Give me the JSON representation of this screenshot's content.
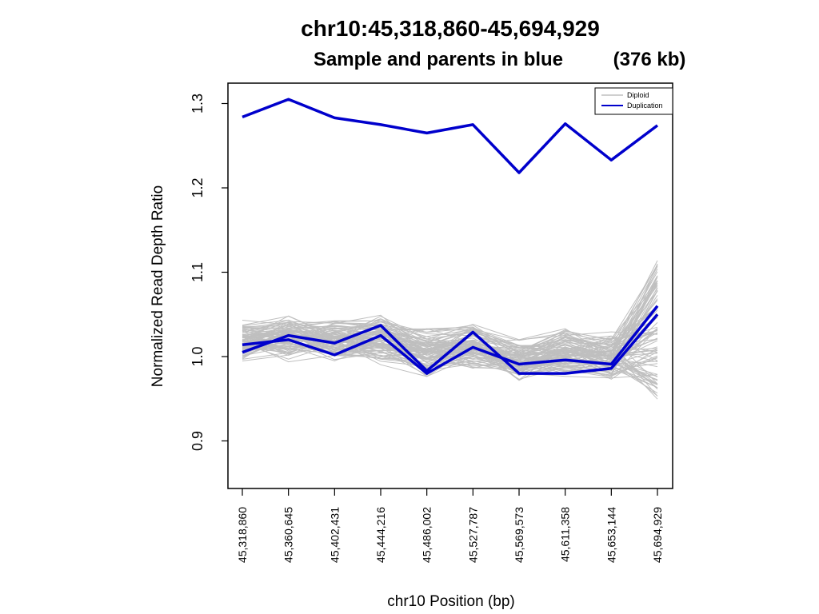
{
  "chart_data": {
    "type": "line",
    "title": "chr10:45,318,860-45,694,929",
    "subtitle": "Sample and parents in blue",
    "size_label": "(376 kb)",
    "xlabel": "chr10 Position (bp)",
    "ylabel": "Normalized Read Depth Ratio",
    "ylim": [
      0.86,
      1.34
    ],
    "yticks": [
      0.9,
      1.0,
      1.1,
      1.2,
      1.3
    ],
    "ytick_labels": [
      "0.9",
      "1.0",
      "1.1",
      "1.2",
      "1.3"
    ],
    "x": [
      45318860,
      45360645,
      45402431,
      45444216,
      45486002,
      45527787,
      45569573,
      45611358,
      45653144,
      45694929
    ],
    "xtick_labels": [
      "45,318,860",
      "45,360,645",
      "45,402,431",
      "45,444,216",
      "45,486,002",
      "45,527,787",
      "45,569,573",
      "45,611,358",
      "45,653,144",
      "45,694,929"
    ],
    "grid": false,
    "legend": {
      "position": "top-right",
      "entries": [
        {
          "label": "Diploid",
          "color": "#bfbfbf"
        },
        {
          "label": "Duplication",
          "color": "#0000cc"
        }
      ]
    },
    "diploid_band": {
      "description_only_for_script": false,
      "mean": [
        1.018,
        1.022,
        1.018,
        1.02,
        1.005,
        1.01,
        0.995,
        1.005,
        1.0,
        1.04
      ],
      "spread": [
        0.025,
        0.028,
        0.026,
        0.03,
        0.03,
        0.03,
        0.025,
        0.028,
        0.028,
        0.075
      ],
      "count": 90
    },
    "series": [
      {
        "group": "Duplication",
        "values": [
          1.284,
          1.305,
          1.283,
          1.275,
          1.265,
          1.275,
          1.218,
          1.276,
          1.233,
          1.274
        ]
      },
      {
        "group": "Duplication",
        "values": [
          1.014,
          1.02,
          1.002,
          1.025,
          0.98,
          1.011,
          0.991,
          0.996,
          0.991,
          1.06
        ]
      },
      {
        "group": "Duplication",
        "values": [
          1.005,
          1.025,
          1.016,
          1.037,
          0.983,
          1.029,
          0.98,
          0.98,
          0.986,
          1.05
        ]
      }
    ],
    "colors": {
      "diploid": "#bfbfbf",
      "duplication": "#0000cc",
      "axes": "#000000"
    }
  }
}
